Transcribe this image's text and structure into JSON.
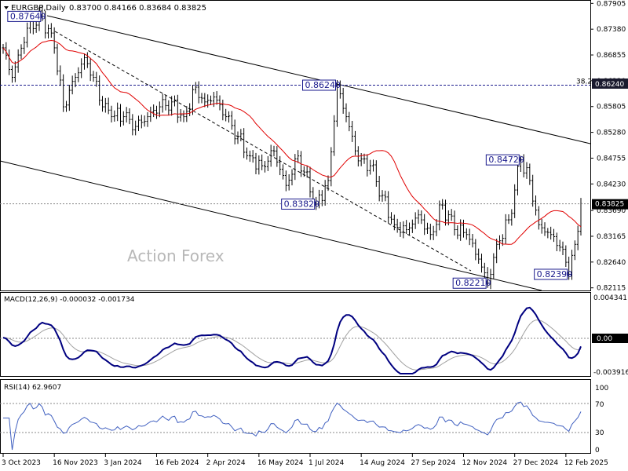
{
  "header": {
    "symbol": "EURGBP,Daily",
    "ohlc": "0.83700 0.84166 0.83684 0.83825"
  },
  "watermark": "Action Forex",
  "callouts": [
    {
      "text": "0.87640",
      "i": 13,
      "v": 0.8764,
      "side": "left"
    },
    {
      "text": "0.86240",
      "i": 111,
      "v": 0.8624,
      "side": "left"
    },
    {
      "text": "0.83820",
      "i": 104,
      "v": 0.8382,
      "side": "left"
    },
    {
      "text": "0.82210",
      "i": 161,
      "v": 0.8221,
      "side": "left"
    },
    {
      "text": "0.84720",
      "i": 172,
      "v": 0.8472,
      "side": "left"
    },
    {
      "text": "0.82390",
      "i": 188,
      "v": 0.8239,
      "side": "left"
    }
  ],
  "fib": {
    "label": "38.2",
    "value": "0.86240",
    "v": 0.8624
  },
  "current_price": {
    "text": "0.83825",
    "v": 0.83825
  },
  "price_axis": [
    "0.87905",
    "0.87380",
    "0.86855",
    "0.86330",
    "0.85805",
    "0.85280",
    "0.84755",
    "0.84230",
    "0.83690",
    "0.83165",
    "0.82640",
    "0.82115"
  ],
  "macd": {
    "title": "MACD(12,26,9) -0.000032 -0.001734",
    "ticks": [
      "0.004341",
      "0.00",
      "-0.003916"
    ]
  },
  "rsi": {
    "title": "RSI(14) 62.9607",
    "ticks": [
      "100",
      "70",
      "30",
      "0"
    ]
  },
  "date_axis": [
    "3 Oct 2023",
    "16 Nov 2023",
    "3 Jan 2024",
    "16 Feb 2024",
    "2 Apr 2024",
    "16 May 2024",
    "1 Jul 2024",
    "14 Aug 2024",
    "27 Sep 2024",
    "12 Nov 2024",
    "27 Dec 2024",
    "12 Feb 2025"
  ],
  "colors": {
    "price": "#000000",
    "ma": "#e00000",
    "macd": "#000080",
    "signal": "#a0a0a0",
    "rsi": "#4060c0",
    "callout": "#1a1a8c"
  },
  "chart_data": {
    "type": "line",
    "price_ylim": [
      0.8211,
      0.8791
    ],
    "series": [
      {
        "name": "EURGBP,Daily",
        "anchors": [
          [
            0,
            0.87
          ],
          [
            3,
            0.864
          ],
          [
            8,
            0.874
          ],
          [
            13,
            0.8764
          ],
          [
            17,
            0.87
          ],
          [
            20,
            0.858
          ],
          [
            24,
            0.864
          ],
          [
            27,
            0.868
          ],
          [
            30,
            0.864
          ],
          [
            33,
            0.858
          ],
          [
            36,
            0.856
          ],
          [
            40,
            0.856
          ],
          [
            44,
            0.854
          ],
          [
            48,
            0.856
          ],
          [
            52,
            0.858
          ],
          [
            56,
            0.859
          ],
          [
            60,
            0.856
          ],
          [
            64,
            0.862
          ],
          [
            67,
            0.859
          ],
          [
            70,
            0.86
          ],
          [
            74,
            0.856
          ],
          [
            78,
            0.852
          ],
          [
            82,
            0.848
          ],
          [
            86,
            0.846
          ],
          [
            90,
            0.849
          ],
          [
            94,
            0.842
          ],
          [
            98,
            0.848
          ],
          [
            104,
            0.8382
          ],
          [
            108,
            0.843
          ],
          [
            111,
            0.8624
          ],
          [
            114,
            0.856
          ],
          [
            118,
            0.847
          ],
          [
            122,
            0.846
          ],
          [
            126,
            0.84
          ],
          [
            130,
            0.834
          ],
          [
            134,
            0.833
          ],
          [
            138,
            0.836
          ],
          [
            142,
            0.832
          ],
          [
            146,
            0.838
          ],
          [
            150,
            0.833
          ],
          [
            154,
            0.832
          ],
          [
            158,
            0.827
          ],
          [
            161,
            0.8221
          ],
          [
            164,
            0.83
          ],
          [
            168,
            0.835
          ],
          [
            172,
            0.8472
          ],
          [
            175,
            0.843
          ],
          [
            178,
            0.834
          ],
          [
            182,
            0.832
          ],
          [
            186,
            0.829
          ],
          [
            188,
            0.8239
          ],
          [
            190,
            0.83
          ],
          [
            192,
            0.8383
          ]
        ]
      }
    ]
  }
}
